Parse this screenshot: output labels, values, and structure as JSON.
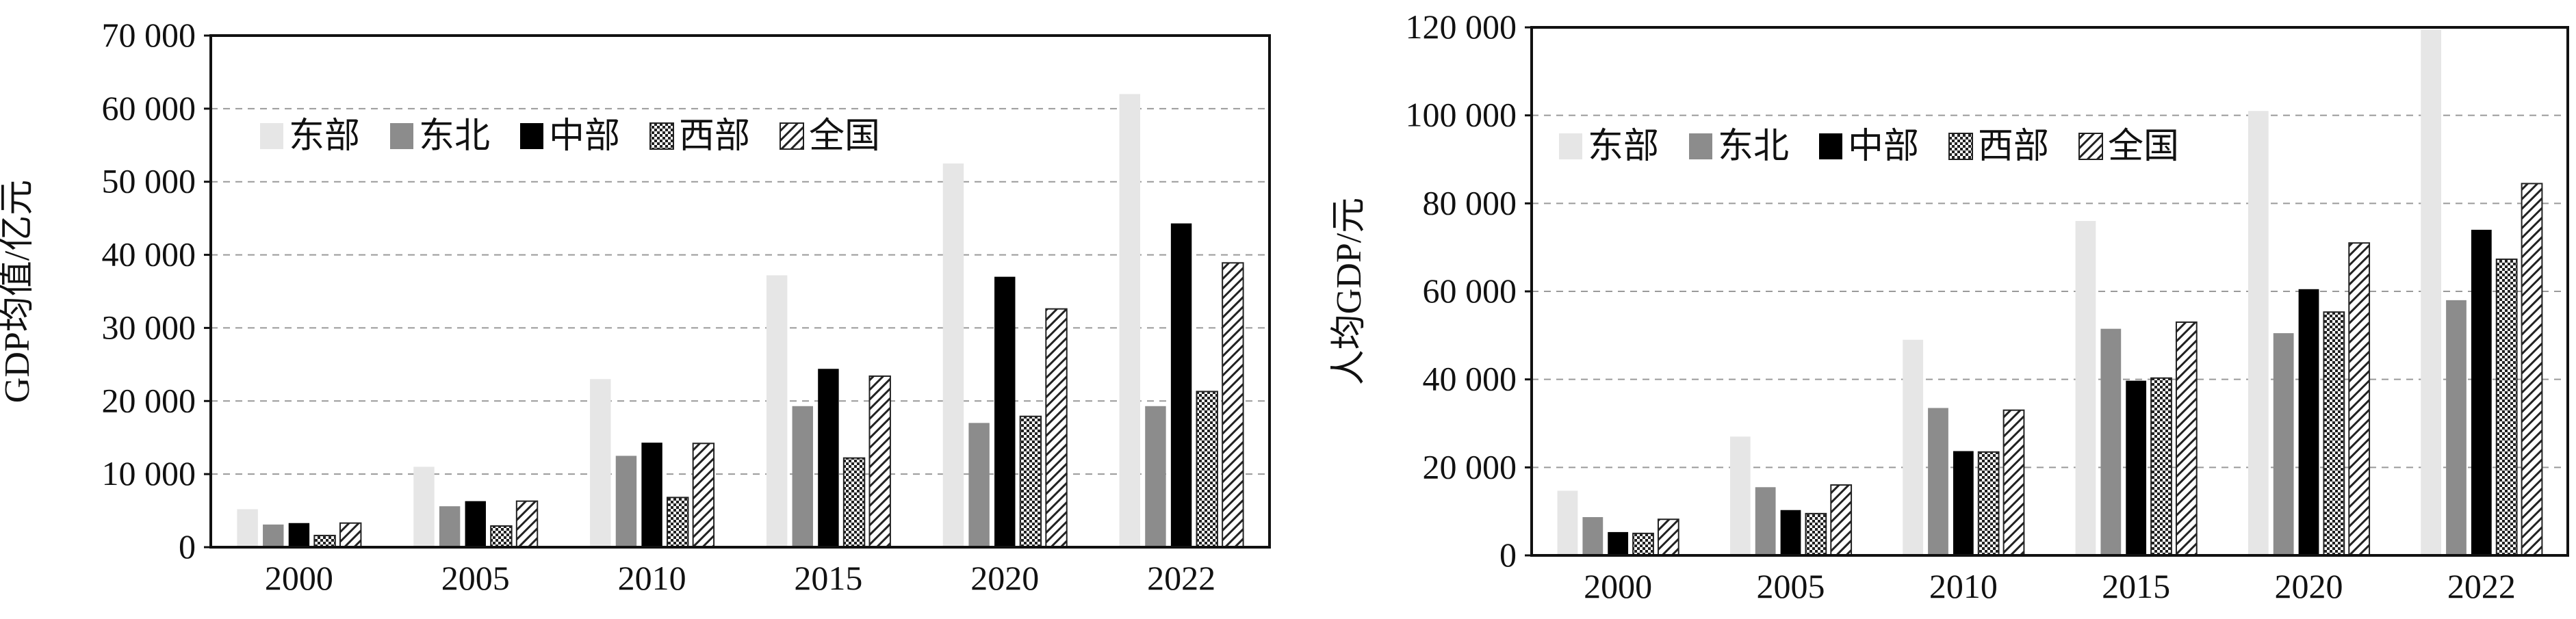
{
  "chart_data": [
    {
      "type": "bar",
      "ylabel": "GDP均值/亿元",
      "xlabel": "",
      "categories": [
        "2000",
        "2005",
        "2010",
        "2015",
        "2020",
        "2022"
      ],
      "ylim": [
        0,
        70000
      ],
      "yticks": [
        0,
        10000,
        20000,
        30000,
        40000,
        50000,
        60000,
        70000
      ],
      "ytick_labels": [
        "0",
        "10 000",
        "20 000",
        "30 000",
        "40 000",
        "50 000",
        "60 000",
        "70 000"
      ],
      "grid": "horizontal dashed",
      "legend_position": "top-left",
      "series": [
        {
          "name": "东部",
          "values": [
            5200,
            11000,
            23000,
            37200,
            52500,
            62000
          ]
        },
        {
          "name": "东北",
          "values": [
            3100,
            5600,
            12500,
            19300,
            17000,
            19300
          ]
        },
        {
          "name": "中部",
          "values": [
            3300,
            6300,
            14300,
            24400,
            37000,
            44300
          ]
        },
        {
          "name": "西部",
          "values": [
            1600,
            2900,
            6800,
            12200,
            17900,
            21300
          ]
        },
        {
          "name": "全国",
          "values": [
            3300,
            6300,
            14200,
            23400,
            32600,
            38900
          ]
        }
      ]
    },
    {
      "type": "bar",
      "ylabel": "人均GDP/元",
      "xlabel": "",
      "categories": [
        "2000",
        "2005",
        "2010",
        "2015",
        "2020",
        "2022"
      ],
      "ylim": [
        0,
        120000
      ],
      "yticks": [
        0,
        20000,
        40000,
        60000,
        80000,
        100000,
        120000
      ],
      "ytick_labels": [
        "0",
        "20 000",
        "40 000",
        "60 000",
        "80 000",
        "100 000",
        "120 000"
      ],
      "grid": "horizontal dashed",
      "legend_position": "top-left",
      "series": [
        {
          "name": "东部",
          "values": [
            14700,
            27000,
            49000,
            76000,
            101000,
            119500
          ]
        },
        {
          "name": "东北",
          "values": [
            8700,
            15500,
            33500,
            51500,
            50500,
            58000
          ]
        },
        {
          "name": "中部",
          "values": [
            5300,
            10300,
            23700,
            39700,
            60500,
            74000
          ]
        },
        {
          "name": "西部",
          "values": [
            5000,
            9500,
            23500,
            40300,
            55300,
            67300
          ]
        },
        {
          "name": "全国",
          "values": [
            8200,
            16000,
            33000,
            53000,
            71000,
            84500
          ]
        }
      ]
    }
  ],
  "colors": {
    "东部": "#e6e6e6",
    "东北": "#8c8c8c",
    "中部": "#000000",
    "西部": "crosshatch",
    "全国": "diagonal-hatch"
  }
}
